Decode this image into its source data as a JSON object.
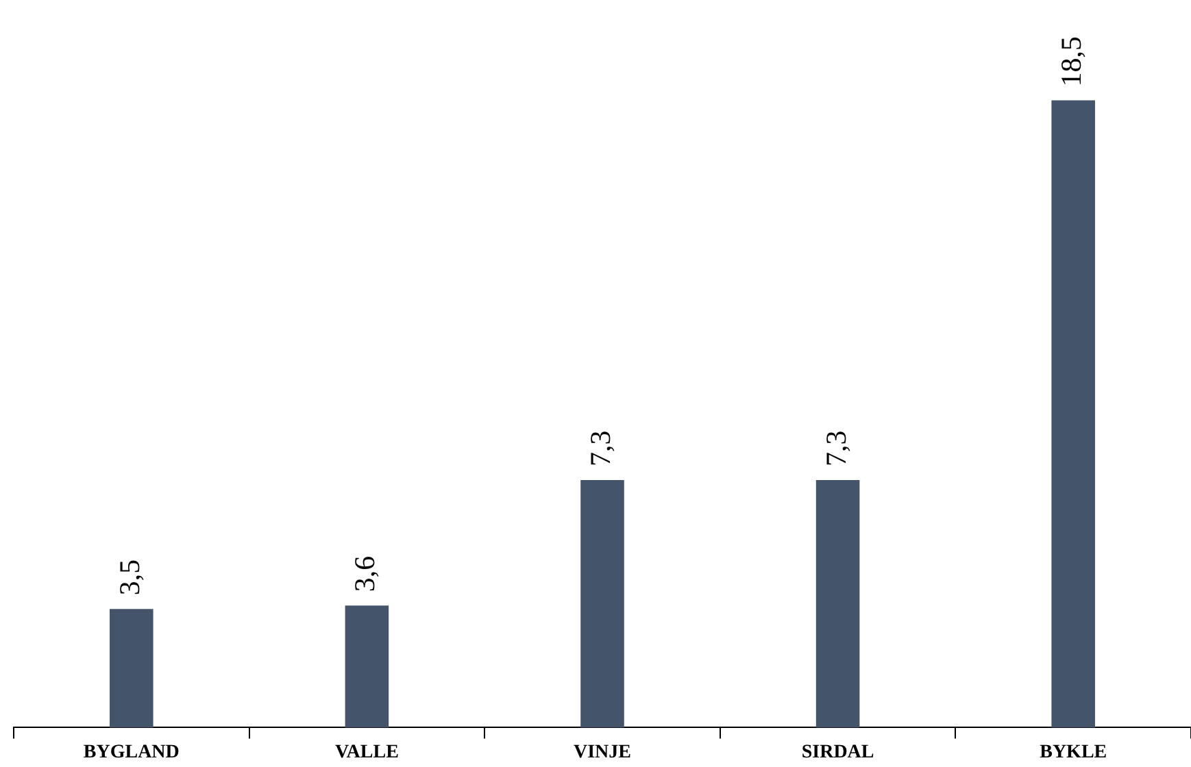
{
  "chart_data": {
    "type": "bar",
    "categories": [
      "BYGLAND",
      "VALLE",
      "VINJE",
      "SIRDAL",
      "BYKLE"
    ],
    "values": [
      3.5,
      3.6,
      7.3,
      7.3,
      18.5
    ],
    "value_labels": [
      "3,5",
      "3,6",
      "7,3",
      "7,3",
      "18,5"
    ],
    "color": "#44546a",
    "grid": false,
    "legend": false,
    "tick_labels": "x"
  }
}
